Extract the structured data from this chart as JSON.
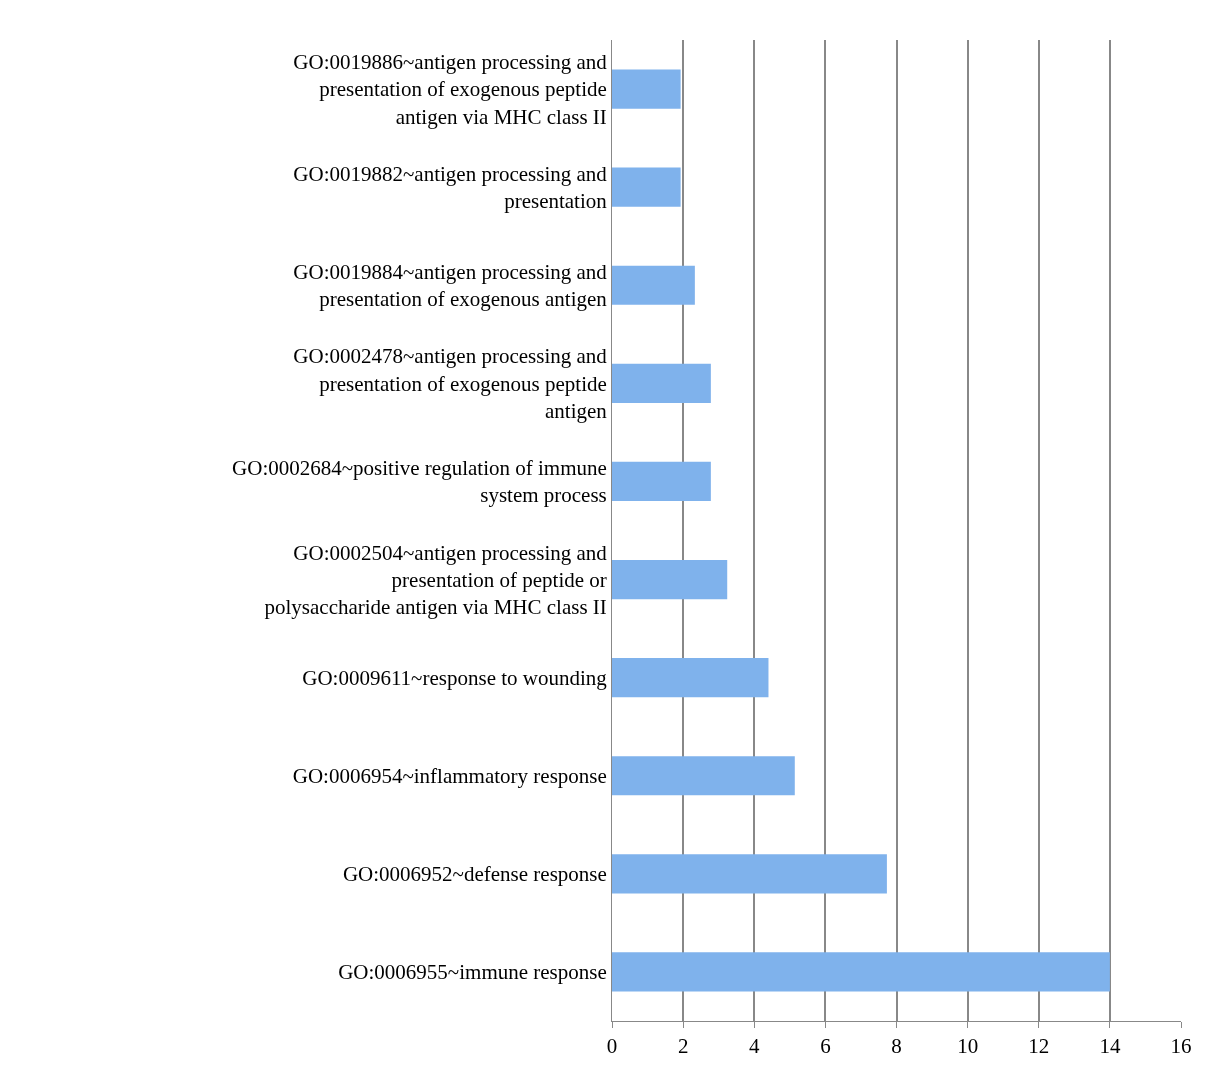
{
  "chart_data": {
    "type": "bar",
    "orientation": "horizontal",
    "categories": [
      "GO:0019886~antigen processing and presentation of exogenous peptide antigen via MHC class II",
      "GO:0019882~antigen processing and presentation",
      "GO:0019884~antigen processing and presentation of exogenous antigen",
      "GO:0002478~antigen processing and presentation of exogenous peptide antigen",
      "GO:0002684~positive regulation of immune system process",
      "GO:0002504~antigen processing and presentation of peptide or polysaccharide antigen via MHC class II",
      "GO:0009611~response to wounding",
      "GO:0006954~inflammatory response",
      "GO:0006952~defense response",
      "GO:0006955~immune response"
    ],
    "values": [
      1.93,
      1.93,
      2.33,
      2.78,
      2.78,
      3.24,
      4.4,
      5.14,
      7.73,
      14.0
    ],
    "color": "#7fb2ec",
    "xlim": [
      0,
      16
    ],
    "xticks": [
      0,
      2,
      4,
      6,
      8,
      10,
      12,
      14,
      16
    ],
    "grid": "x"
  }
}
